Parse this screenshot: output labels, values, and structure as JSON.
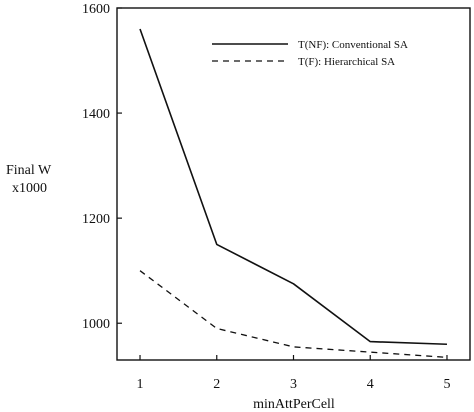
{
  "chart_data": {
    "type": "line",
    "xlabel": "minAttPerCell",
    "ylabel_line1": "Final W",
    "ylabel_line2": "x1000",
    "x": [
      1,
      2,
      3,
      4,
      5
    ],
    "xlim": [
      0.7,
      5.3
    ],
    "ylim": [
      930,
      1600
    ],
    "xticks": [
      "1",
      "2",
      "3",
      "4",
      "5"
    ],
    "yticks": [
      "1000",
      "1200",
      "1400",
      "1600"
    ],
    "ytick_values": [
      1000,
      1200,
      1400,
      1600
    ],
    "grid": false,
    "legend_position": "top-right",
    "series": [
      {
        "name": "T(NF): Conventional SA",
        "style": "solid",
        "values": [
          1560,
          1150,
          1075,
          965,
          960
        ]
      },
      {
        "name": "T(F): Hierarchical SA",
        "style": "dashed",
        "values": [
          1100,
          990,
          955,
          945,
          935
        ]
      }
    ]
  }
}
